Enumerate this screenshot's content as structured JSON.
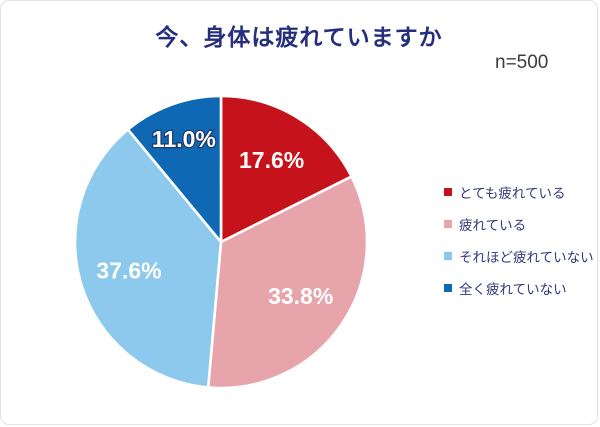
{
  "chart_data": {
    "type": "pie",
    "title": "今、身体は疲れていますか",
    "sample_label": "n=500",
    "start_angle_deg": 0,
    "direction": "clockwise",
    "legend_position": "right",
    "label_color": "#ffffff",
    "label_radius_factors": [
      0.66,
      0.66,
      0.66,
      0.75
    ],
    "slices": [
      {
        "label": "とても疲れている",
        "value": 17.6,
        "display": "17.6%",
        "color": "#c6121b"
      },
      {
        "label": "疲れている",
        "value": 33.8,
        "display": "33.8%",
        "color": "#e7a4ab"
      },
      {
        "label": "それほど疲れていない",
        "value": 37.6,
        "display": "37.6%",
        "color": "#8dc9ed"
      },
      {
        "label": "全く疲れていない",
        "value": 11.0,
        "display": "11.0%",
        "color": "#0f68b4",
        "label_outline": "#1c3a6e"
      }
    ]
  },
  "styles": {
    "title_color": "#272e7e",
    "legend_text_color": "#34387a",
    "sample_color": "#3c3c3c",
    "card_border_color": "#e4e1e6",
    "slice_divider_color": "#ffffff"
  }
}
